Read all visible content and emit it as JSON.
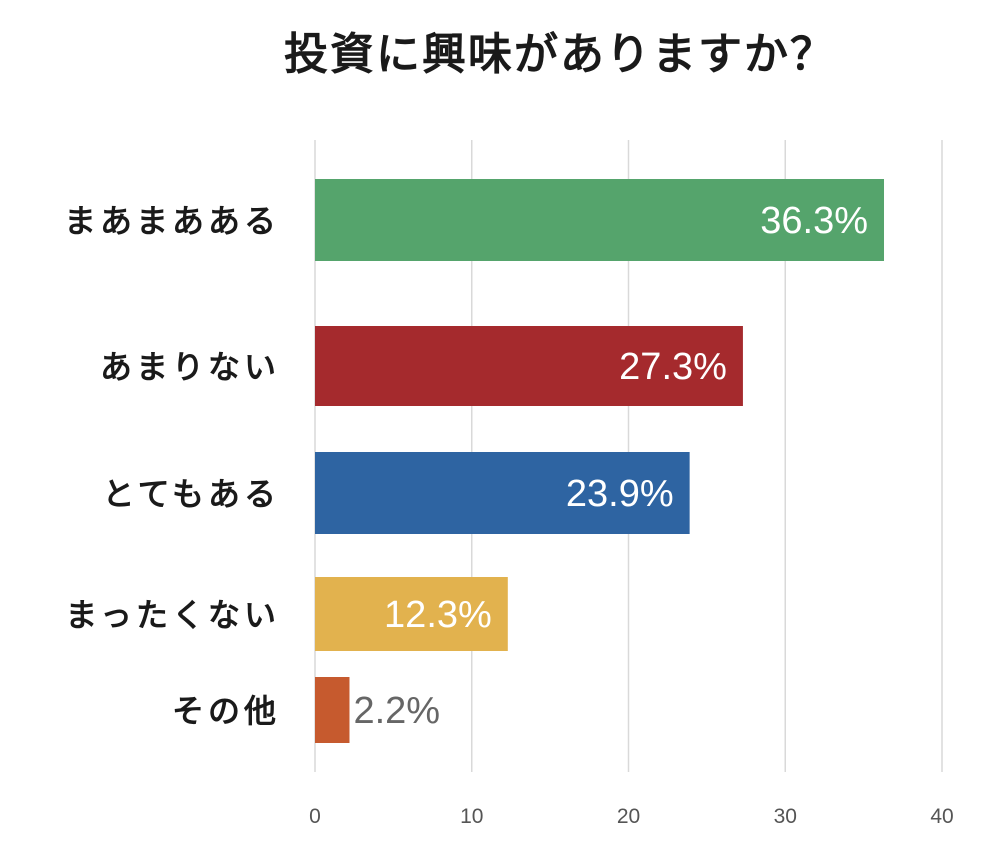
{
  "chart_data": {
    "type": "bar",
    "orientation": "horizontal",
    "title": "投資に興味がありますか？",
    "categories": [
      "まあまあある",
      "あまりない",
      "とてもある",
      "まったくない",
      "その他"
    ],
    "values": [
      36.3,
      27.3,
      23.9,
      12.3,
      2.2
    ],
    "data_labels": [
      "36.3%",
      "27.3%",
      "23.9%",
      "12.3%",
      "2.2%"
    ],
    "colors": [
      "#55a46c",
      "#a52a2d",
      "#2e64a2",
      "#e2b24e",
      "#c65a2e"
    ],
    "label_colors": [
      "#ffffff",
      "#ffffff",
      "#ffffff",
      "#ffffff",
      "#666666"
    ],
    "xlim": [
      0,
      40
    ],
    "xticks": [
      0,
      10,
      20,
      30,
      40
    ],
    "grid": true,
    "legend": "none"
  }
}
